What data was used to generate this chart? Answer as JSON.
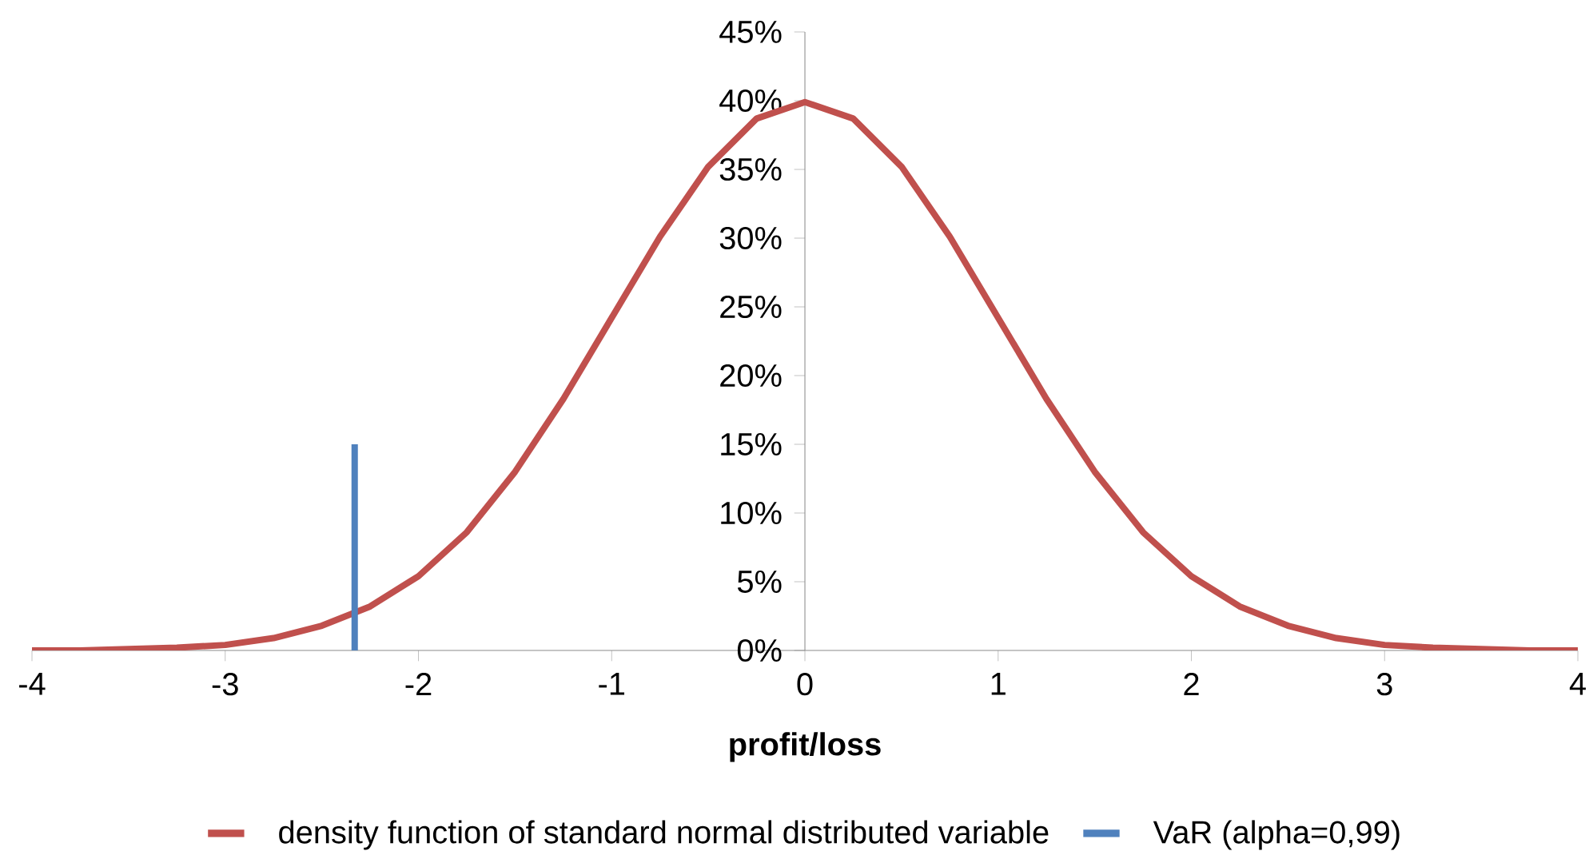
{
  "chart_data": {
    "type": "line",
    "xlabel": "profit/loss",
    "xlim": [
      -4,
      4
    ],
    "xticks": [
      -4,
      -3,
      -2,
      -1,
      0,
      1,
      2,
      3,
      4
    ],
    "ylim": [
      0,
      45
    ],
    "yticks": [
      {
        "value": 0,
        "label": "0%"
      },
      {
        "value": 5,
        "label": "5%"
      },
      {
        "value": 10,
        "label": "10%"
      },
      {
        "value": 15,
        "label": "15%"
      },
      {
        "value": 20,
        "label": "20%"
      },
      {
        "value": 25,
        "label": "25%"
      },
      {
        "value": 30,
        "label": "30%"
      },
      {
        "value": 35,
        "label": "35%"
      },
      {
        "value": 40,
        "label": "40%"
      },
      {
        "value": 45,
        "label": "45%"
      }
    ],
    "grid": false,
    "legend": "bottom",
    "marker": "none",
    "line_style": "solid",
    "series": [
      {
        "name": "density function of standard normal distributed variable",
        "color": "#c0504d",
        "x": [
          -4,
          -3.75,
          -3.5,
          -3.25,
          -3,
          -2.75,
          -2.5,
          -2.25,
          -2,
          -1.75,
          -1.5,
          -1.25,
          -1,
          -0.75,
          -0.5,
          -0.25,
          0,
          0.25,
          0.5,
          0.75,
          1,
          1.25,
          1.5,
          1.75,
          2,
          2.25,
          2.5,
          2.75,
          3,
          3.25,
          3.5,
          3.75,
          4
        ],
        "values": [
          0,
          0,
          0.1,
          0.2,
          0.4,
          0.9,
          1.8,
          3.2,
          5.4,
          8.6,
          13.0,
          18.3,
          24.2,
          30.1,
          35.2,
          38.7,
          39.9,
          38.7,
          35.2,
          30.1,
          24.2,
          18.3,
          13.0,
          8.6,
          5.4,
          3.2,
          1.8,
          0.9,
          0.4,
          0.2,
          0.1,
          0,
          0
        ]
      },
      {
        "name": "VaR (alpha=0,99)",
        "color": "#4f81bd",
        "x": [
          -2.33,
          -2.33
        ],
        "values": [
          0,
          15
        ]
      }
    ]
  }
}
